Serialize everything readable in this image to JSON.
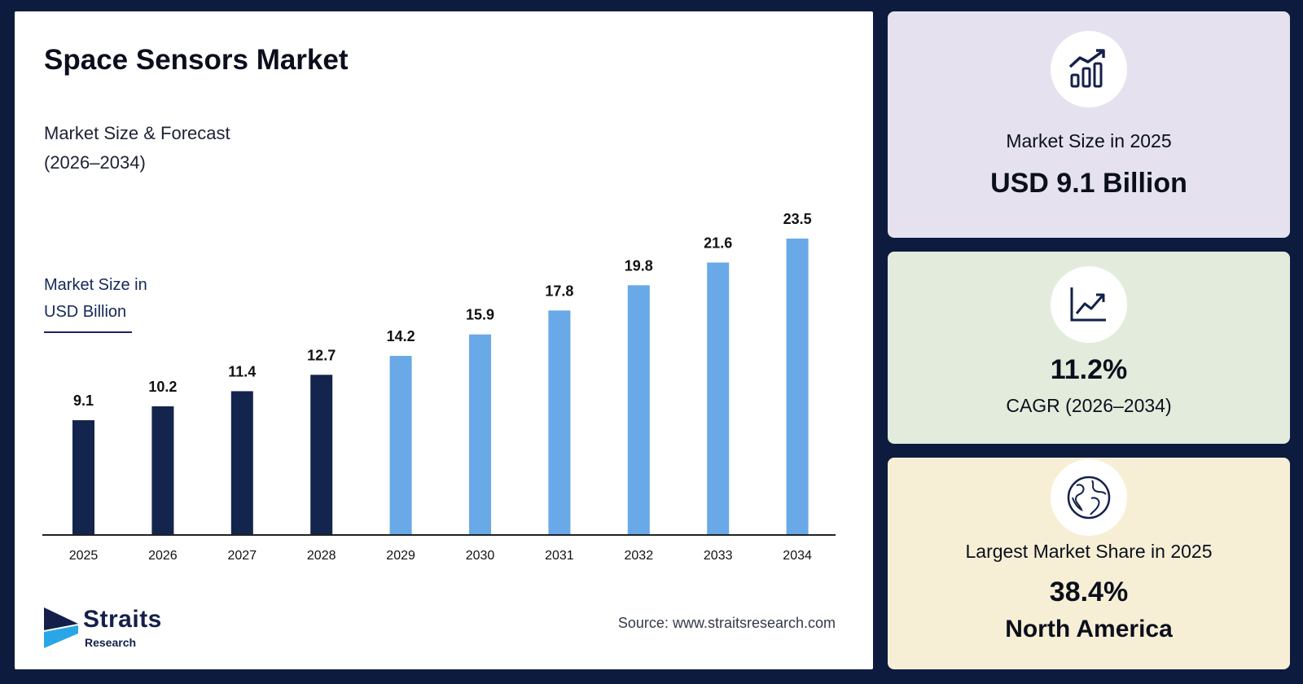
{
  "header": {
    "title": "Space Sensors Market",
    "subtitle_line1": "Market Size & Forecast",
    "subtitle_line2": "(2026–2034)",
    "unit_line1": "Market Size in",
    "unit_line2": "USD Billion"
  },
  "footer": {
    "logo_line1": "Straits",
    "logo_line2": "Research",
    "source": "Source: www.straitsresearch.com"
  },
  "colors": {
    "historic_bar": "#13244d",
    "forecast_bar": "#69a9e8",
    "background": "#0d1b3e"
  },
  "chart_data": {
    "type": "bar",
    "categories": [
      "2025",
      "2026",
      "2027",
      "2028",
      "2029",
      "2030",
      "2031",
      "2032",
      "2033",
      "2034"
    ],
    "values": [
      9.1,
      10.2,
      11.4,
      12.7,
      14.2,
      15.9,
      17.8,
      19.8,
      21.6,
      23.5
    ],
    "historic_count": 4,
    "data_labels": [
      "9.1",
      "10.2",
      "11.4",
      "12.7",
      "14.2",
      "15.9",
      "17.8",
      "19.8",
      "21.6",
      "23.5"
    ],
    "title": "Space Sensors Market",
    "xlabel": "",
    "ylabel": "Market Size in USD Billion",
    "ylim": [
      0,
      23.5
    ],
    "grid": false,
    "legend": "none"
  },
  "cards": [
    {
      "icon": "bar-chart-up-icon",
      "label": "Market Size in 2025",
      "value": "USD 9.1 Billion"
    },
    {
      "icon": "line-chart-icon",
      "value": "11.2%",
      "label": "CAGR (2026–2034)"
    },
    {
      "icon": "globe-icon",
      "label": "Largest Market Share in 2025",
      "value": "38.4%",
      "region": "North America"
    }
  ]
}
